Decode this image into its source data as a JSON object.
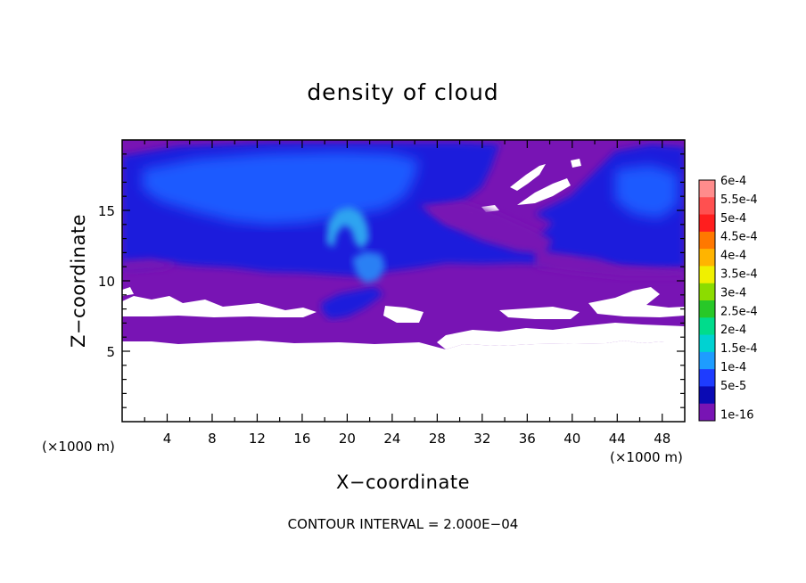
{
  "chart_data": {
    "type": "heatmap",
    "title": "density of cloud",
    "xlabel": "X−coordinate",
    "ylabel": "Z−coordinate",
    "x_unit": "(×1000 m)",
    "y_unit": "(×1000 m)",
    "xlim": [
      0,
      50
    ],
    "ylim": [
      0,
      20
    ],
    "x_ticks": [
      4,
      8,
      12,
      16,
      20,
      24,
      28,
      32,
      36,
      40,
      44,
      48
    ],
    "y_ticks": [
      5,
      10,
      15
    ],
    "colorbar": {
      "labels": [
        "6e-4",
        "5.5e-4",
        "5e-4",
        "4.5e-4",
        "4e-4",
        "3.5e-4",
        "3e-4",
        "2.5e-4",
        "2e-4",
        "1.5e-4",
        "1e-4",
        "5e-5",
        "1e-16"
      ],
      "colors": [
        "#ff8c8c",
        "#ff5050",
        "#ff1e1e",
        "#ff7800",
        "#ffb400",
        "#f0f000",
        "#8cdc00",
        "#28c828",
        "#00dc8c",
        "#00d2d2",
        "#1e9cff",
        "#1e3cff",
        "#0a0ab4",
        "#7814b4"
      ]
    },
    "contour_interval_text": "CONTOUR INTERVAL = 2.000E−04",
    "field_regions": [
      {
        "level": "1e-16",
        "color": "#7814b4",
        "z_range": [
          5.6,
          20
        ],
        "x_range": [
          0,
          50
        ]
      },
      {
        "level": "5e-5",
        "color": "#1e1edc",
        "z_range": [
          10.5,
          19.5
        ],
        "x_range": [
          0,
          50
        ]
      },
      {
        "level": "1e-4",
        "color": "#1e5aff",
        "z_range": [
          12,
          19
        ],
        "x_range": [
          4,
          30
        ]
      },
      {
        "level": "1.5e-4",
        "color": "#2ea4f0",
        "z_range": [
          10.5,
          15
        ],
        "x_range": [
          18,
          22
        ]
      }
    ],
    "grid": false,
    "legend": "right"
  }
}
